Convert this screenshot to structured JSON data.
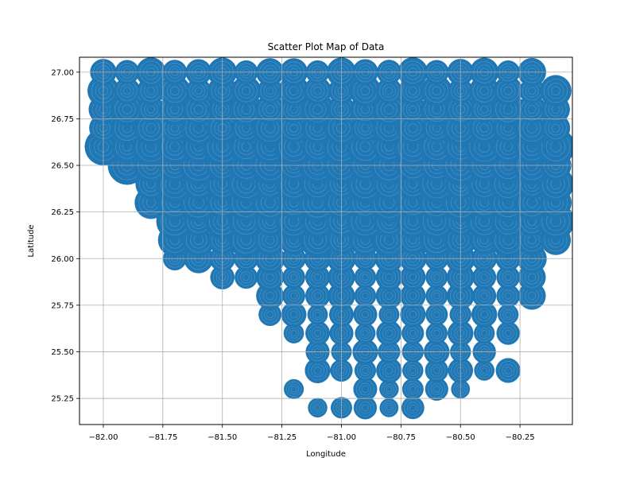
{
  "chart_data": {
    "type": "scatter",
    "title": "Scatter Plot Map of Data",
    "xlabel": "Longitude",
    "ylabel": "Latitude",
    "xlim": [
      -82.1,
      -80.03
    ],
    "ylim": [
      25.11,
      27.08
    ],
    "xticks": [
      -82.0,
      -81.75,
      -81.5,
      -81.25,
      -81.0,
      -80.75,
      -80.5,
      -80.25
    ],
    "xtick_labels": [
      "−82.00",
      "−81.75",
      "−81.50",
      "−81.25",
      "−81.00",
      "−80.75",
      "−80.50",
      "−80.25"
    ],
    "yticks": [
      25.25,
      25.5,
      25.75,
      26.0,
      26.25,
      26.5,
      26.75,
      27.0
    ],
    "ytick_labels": [
      "25.25",
      "25.50",
      "25.75",
      "26.00",
      "26.25",
      "26.50",
      "26.75",
      "27.00"
    ],
    "grid": true,
    "legend": "none",
    "marker_color": "#1f77b4",
    "grid_color": "#b0b0b0",
    "marker_size_note": "bubble sizes vary per point",
    "rows": [
      {
        "lat": 27.0,
        "lons": [
          -82.0,
          -81.9,
          -81.8,
          -81.7,
          -81.6,
          -81.5,
          -81.4,
          -81.3,
          -81.2,
          -81.1,
          -81.0,
          -80.9,
          -80.8,
          -80.7,
          -80.6,
          -80.5,
          -80.4,
          -80.3,
          -80.2
        ],
        "size": 0.75
      },
      {
        "lat": 26.9,
        "lons": [
          -82.0,
          -81.9,
          -81.8,
          -81.7,
          -81.6,
          -81.5,
          -81.4,
          -81.3,
          -81.2,
          -81.1,
          -81.0,
          -80.9,
          -80.8,
          -80.7,
          -80.6,
          -80.5,
          -80.4,
          -80.3,
          -80.2,
          -80.1
        ],
        "size": 0.8
      },
      {
        "lat": 26.8,
        "lons": [
          -82.0,
          -81.9,
          -81.8,
          -81.7,
          -81.6,
          -81.5,
          -81.4,
          -81.3,
          -81.2,
          -81.1,
          -81.0,
          -80.9,
          -80.8,
          -80.7,
          -80.6,
          -80.5,
          -80.4,
          -80.3,
          -80.2,
          -80.1
        ],
        "size": 0.85
      },
      {
        "lat": 26.7,
        "lons": [
          -82.0,
          -81.9,
          -81.8,
          -81.7,
          -81.6,
          -81.5,
          -81.4,
          -81.3,
          -81.2,
          -81.1,
          -81.0,
          -80.9,
          -80.8,
          -80.7,
          -80.6,
          -80.5,
          -80.4,
          -80.3,
          -80.2,
          -80.1
        ],
        "size": 0.9
      },
      {
        "lat": 26.6,
        "lons": [
          -82.0,
          -81.9,
          -81.8,
          -81.7,
          -81.6,
          -81.5,
          -81.4,
          -81.3,
          -81.2,
          -81.1,
          -81.0,
          -80.9,
          -80.8,
          -80.7,
          -80.6,
          -80.5,
          -80.4,
          -80.3,
          -80.2,
          -80.1
        ],
        "size": 1.0
      },
      {
        "lat": 26.5,
        "lons": [
          -81.9,
          -81.8,
          -81.7,
          -81.6,
          -81.5,
          -81.4,
          -81.3,
          -81.2,
          -81.1,
          -81.0,
          -80.9,
          -80.8,
          -80.7,
          -80.6,
          -80.5,
          -80.4,
          -80.3,
          -80.2,
          -80.1
        ],
        "size": 1.0
      },
      {
        "lat": 26.4,
        "lons": [
          -81.8,
          -81.7,
          -81.6,
          -81.5,
          -81.4,
          -81.3,
          -81.2,
          -81.1,
          -81.0,
          -80.9,
          -80.8,
          -80.7,
          -80.6,
          -80.5,
          -80.4,
          -80.3,
          -80.2,
          -80.1
        ],
        "size": 0.95
      },
      {
        "lat": 26.3,
        "lons": [
          -81.8,
          -81.7,
          -81.6,
          -81.5,
          -81.4,
          -81.3,
          -81.2,
          -81.1,
          -81.0,
          -80.9,
          -80.8,
          -80.7,
          -80.6,
          -80.5,
          -80.4,
          -80.3,
          -80.2,
          -80.1
        ],
        "size": 1.0
      },
      {
        "lat": 26.2,
        "lons": [
          -81.7,
          -81.6,
          -81.5,
          -81.4,
          -81.3,
          -81.2,
          -81.1,
          -81.0,
          -80.9,
          -80.8,
          -80.7,
          -80.6,
          -80.5,
          -80.4,
          -80.3,
          -80.2,
          -80.1
        ],
        "size": 0.95
      },
      {
        "lat": 26.1,
        "lons": [
          -81.7,
          -81.6,
          -81.5,
          -81.4,
          -81.3,
          -81.2,
          -81.1,
          -81.0,
          -80.9,
          -80.8,
          -80.7,
          -80.6,
          -80.5,
          -80.4,
          -80.3,
          -80.2,
          -80.1
        ],
        "size": 0.9
      },
      {
        "lat": 26.0,
        "lons": [
          -81.7,
          -81.6,
          -81.5,
          -81.4,
          -81.3,
          -81.2,
          -81.1,
          -81.0,
          -80.9,
          -80.8,
          -80.7,
          -80.6,
          -80.5,
          -80.4,
          -80.3,
          -80.2
        ],
        "size": 0.75
      },
      {
        "lat": 25.9,
        "lons": [
          -81.5,
          -81.4,
          -81.3,
          -81.2,
          -81.1,
          -81.0,
          -80.9,
          -80.8,
          -80.7,
          -80.6,
          -80.5,
          -80.4,
          -80.3,
          -80.2
        ],
        "size": 0.7
      },
      {
        "lat": 25.8,
        "lons": [
          -81.3,
          -81.2,
          -81.1,
          -81.0,
          -80.9,
          -80.8,
          -80.7,
          -80.6,
          -80.5,
          -80.4,
          -80.3,
          -80.2
        ],
        "size": 0.7
      },
      {
        "lat": 25.7,
        "lons": [
          -81.3,
          -81.2,
          -81.1,
          -81.0,
          -80.9,
          -80.8,
          -80.7,
          -80.6,
          -80.5,
          -80.4,
          -80.3
        ],
        "size": 0.65
      },
      {
        "lat": 25.6,
        "lons": [
          -81.2,
          -81.1,
          -81.0,
          -80.9,
          -80.8,
          -80.7,
          -80.6,
          -80.5,
          -80.4,
          -80.3
        ],
        "size": 0.65
      },
      {
        "lat": 25.5,
        "lons": [
          -81.1,
          -81.0,
          -80.9,
          -80.8,
          -80.7,
          -80.6,
          -80.5,
          -80.4
        ],
        "size": 0.65
      },
      {
        "lat": 25.4,
        "lons": [
          -81.1,
          -81.0,
          -80.9,
          -80.8,
          -80.7,
          -80.6,
          -80.5,
          -80.4,
          -80.3
        ],
        "size": 0.65
      },
      {
        "lat": 25.3,
        "lons": [
          -81.2,
          -80.9,
          -80.8,
          -80.7,
          -80.6,
          -80.5
        ],
        "size": 0.6
      },
      {
        "lat": 25.2,
        "lons": [
          -81.1,
          -81.0,
          -80.9,
          -80.8,
          -80.7
        ],
        "size": 0.6
      }
    ]
  }
}
